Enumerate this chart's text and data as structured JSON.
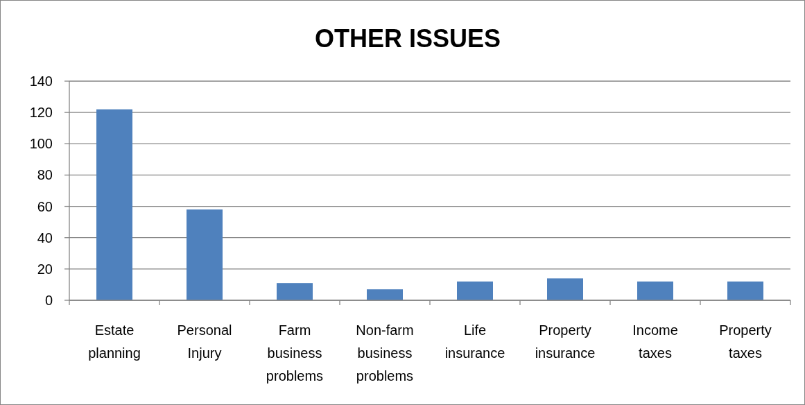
{
  "chart_data": {
    "type": "bar",
    "title": "OTHER ISSUES",
    "categories": [
      "Estate planning",
      "Personal Injury",
      "Farm business problems",
      "Non-farm business problems",
      "Life insurance",
      "Property insurance",
      "Income taxes",
      "Property taxes"
    ],
    "values": [
      122,
      58,
      11,
      7,
      12,
      14,
      12,
      12
    ],
    "color": "#4f81bd",
    "ylim": [
      0,
      140
    ],
    "yticks": [
      0,
      20,
      40,
      60,
      80,
      100,
      120,
      140
    ],
    "grid": "y"
  }
}
